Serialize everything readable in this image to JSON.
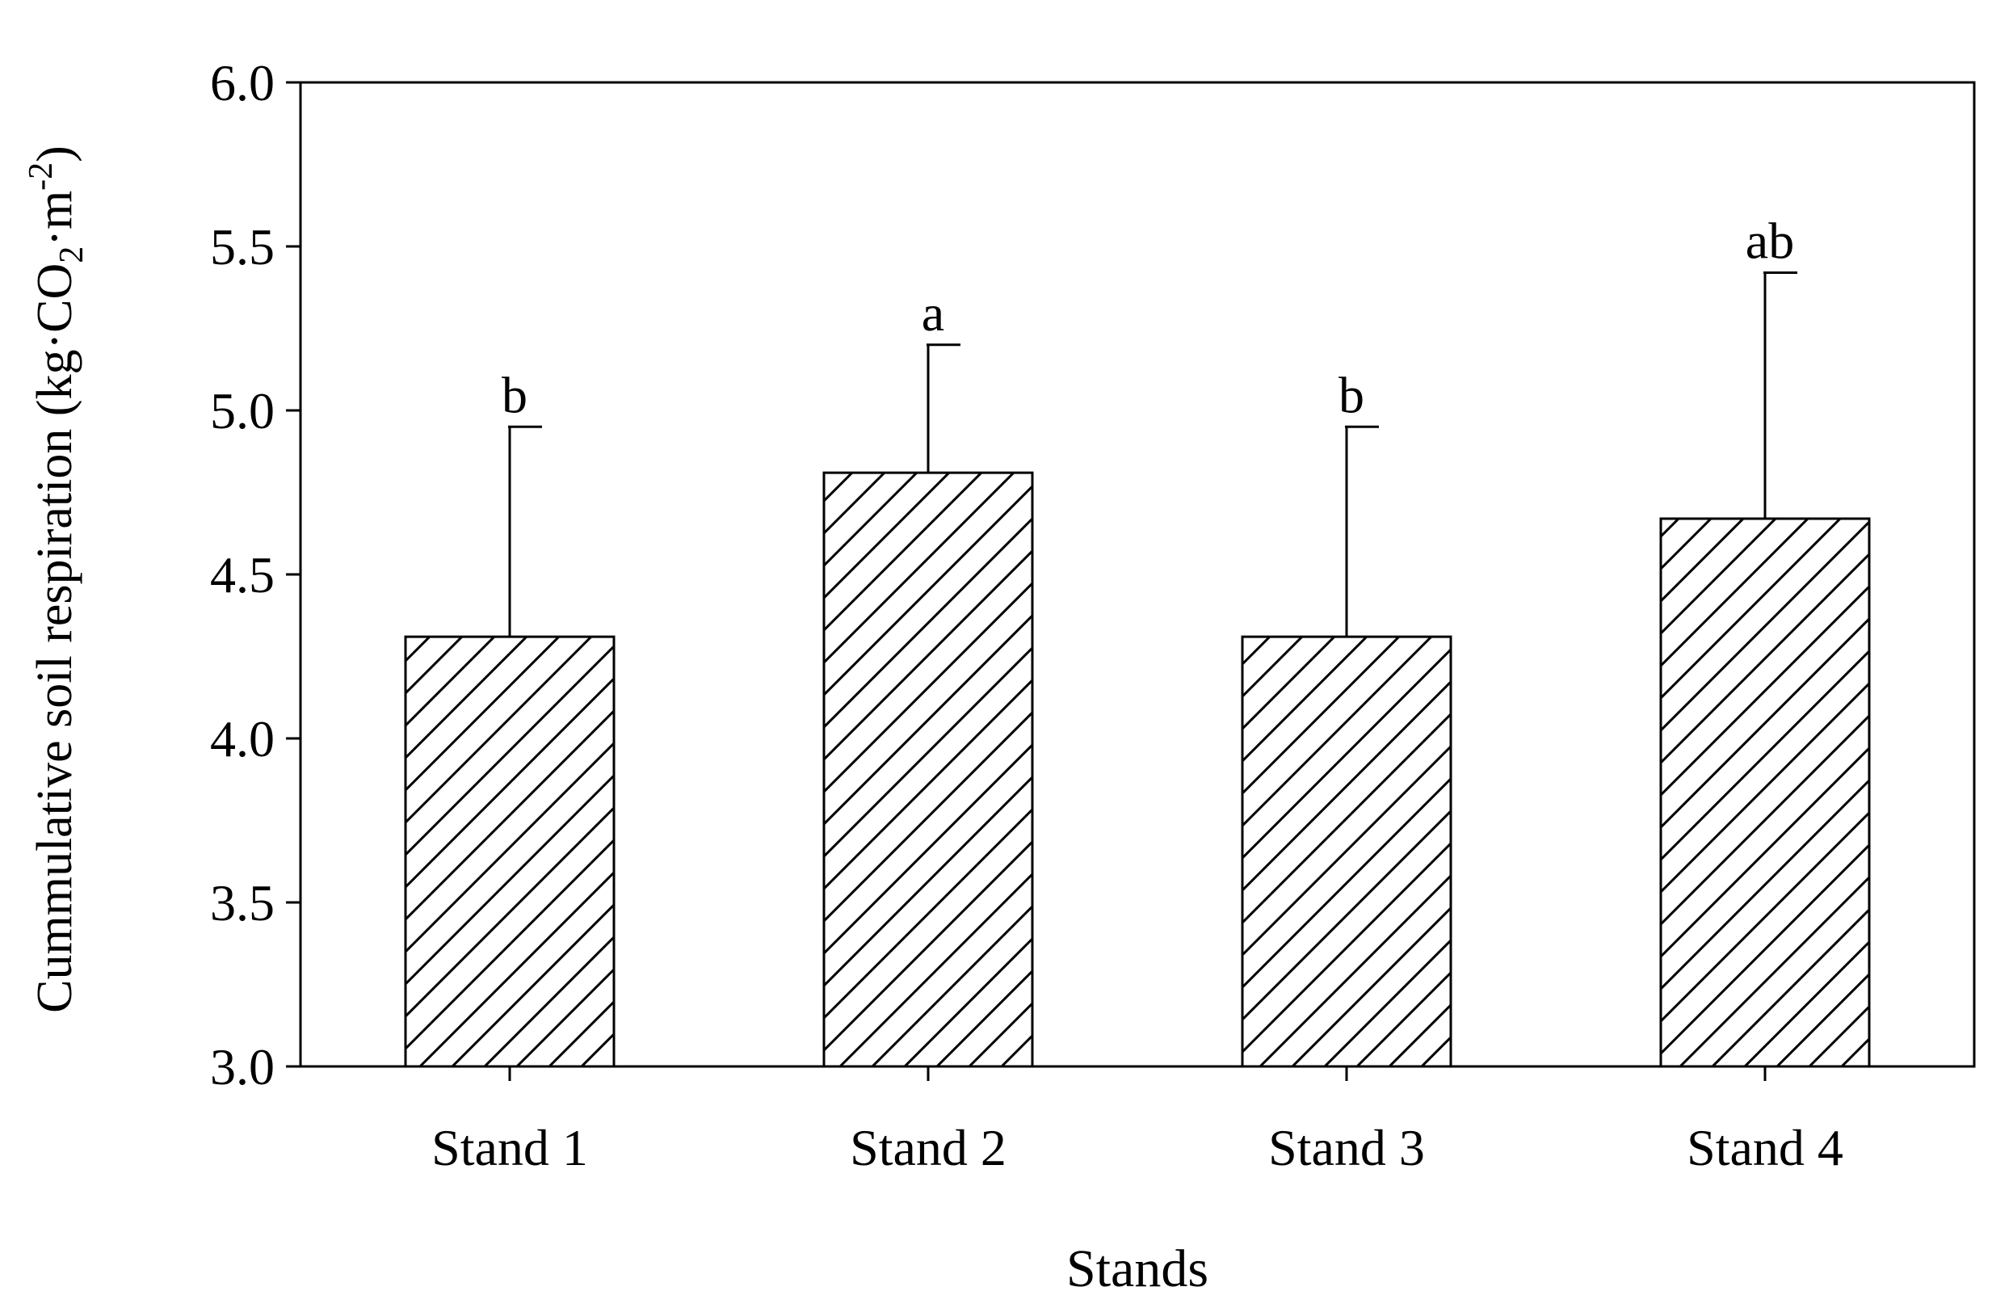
{
  "chart_data": {
    "type": "bar",
    "title": "",
    "xlabel": "Stands",
    "ylabel": {
      "prefix": "Cummulative soil respiration (kg·CO",
      "sub": "2",
      "middle": "·m",
      "sup": "-2",
      "suffix": ")"
    },
    "ylim": [
      3.0,
      6.0
    ],
    "yticks": [
      "3.0",
      "3.5",
      "4.0",
      "4.5",
      "5.0",
      "5.5",
      "6.0"
    ],
    "categories": [
      "Stand 1",
      "Stand 2",
      "Stand 3",
      "Stand 4"
    ],
    "values": [
      4.31,
      4.81,
      4.31,
      4.67
    ],
    "error_upper": [
      4.95,
      5.2,
      4.95,
      5.42
    ],
    "significance_letters": [
      "b",
      "a",
      "b",
      "ab"
    ],
    "bar_fill": "#ffffff",
    "bar_pattern": "diagonal-hatch",
    "line_color": "#000000",
    "grid": false,
    "legend": "none"
  }
}
